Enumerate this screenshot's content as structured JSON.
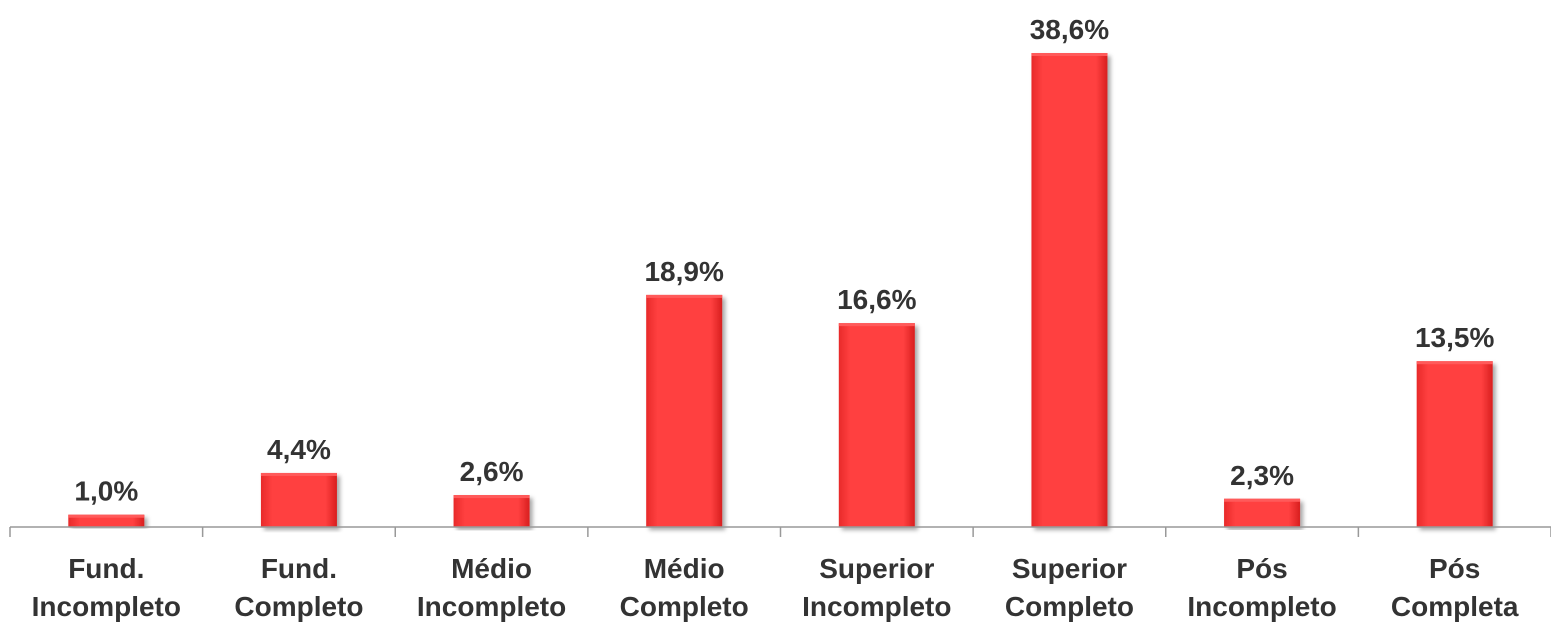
{
  "chart_data": {
    "type": "bar",
    "categories": [
      [
        "Fund.",
        "Incompleto"
      ],
      [
        "Fund.",
        "Completo"
      ],
      [
        "Médio",
        "Incompleto"
      ],
      [
        "Médio",
        "Completo"
      ],
      [
        "Superior",
        "Incompleto"
      ],
      [
        "Superior",
        "Completo"
      ],
      [
        "Pós",
        "Incompleto"
      ],
      [
        "Pós",
        "Completa"
      ]
    ],
    "values": [
      1.0,
      4.4,
      2.6,
      18.9,
      16.6,
      38.6,
      2.3,
      13.5
    ],
    "data_labels": [
      "1,0%",
      "4,4%",
      "2,6%",
      "18,9%",
      "16,6%",
      "38,6%",
      "2,3%",
      "13,5%"
    ],
    "ylim": [
      0,
      40
    ],
    "grid": false,
    "legend": "none",
    "colors": {
      "bar": "#ff3b3b",
      "bar_dark": "#d92020",
      "bar_light": "#ff5a5a",
      "axis": "#999999",
      "text": "#333333"
    }
  }
}
